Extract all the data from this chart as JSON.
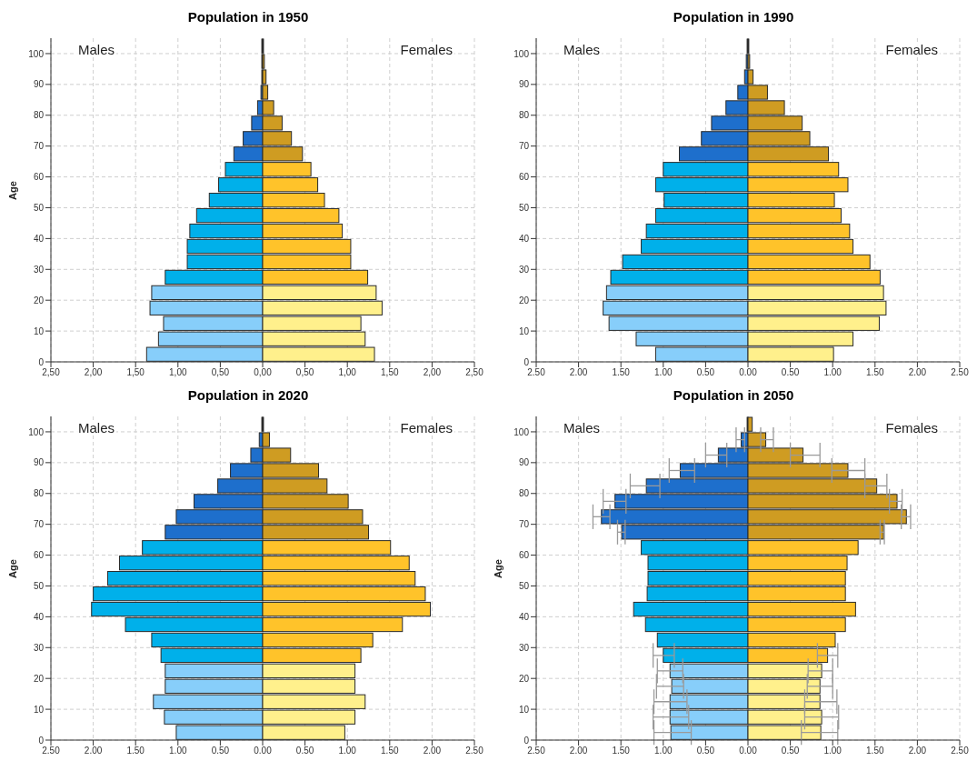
{
  "chart_data": [
    {
      "type": "bar",
      "orientation": "horizontal",
      "title": "Population in 1950",
      "ylabel": "Age",
      "grid": true,
      "stacked": true,
      "legend": false,
      "annotations": [
        "Males",
        "Females"
      ],
      "x": [
        2.5,
        7.5,
        12.5,
        17.5,
        22.5,
        27.5,
        32.5,
        37.5,
        42.5,
        47.5,
        52.5,
        57.5,
        62.5,
        67.5,
        72.5,
        77.5,
        82.5,
        87.5,
        92.5,
        97.5,
        102.5
      ],
      "ylim": [
        0,
        105
      ],
      "yticks": [
        0,
        10,
        20,
        30,
        40,
        50,
        60,
        70,
        80,
        90,
        100
      ],
      "xlim": [
        -2.5,
        2.5
      ],
      "xticks": [
        {
          "value": -2.5,
          "label": "2,50"
        },
        {
          "value": -2,
          "label": "2,00"
        },
        {
          "value": -1.5,
          "label": "1,50"
        },
        {
          "value": -1,
          "label": "1,00"
        },
        {
          "value": -0.5,
          "label": "0,50"
        },
        {
          "value": 0,
          "label": "0,00"
        },
        {
          "value": 0.5,
          "label": "0,50"
        },
        {
          "value": 1,
          "label": "1,00"
        },
        {
          "value": 1.5,
          "label": "1,50"
        },
        {
          "value": 2,
          "label": "2,00"
        },
        {
          "value": 2.5,
          "label": "2,50"
        }
      ],
      "series": [
        {
          "colors": [
            "#87cefa",
            "#87cefa",
            "#87cefa",
            "#87cefa",
            "#87cefa",
            "#00b0ea",
            "#00b0ea",
            "#00b0ea",
            "#00b0ea",
            "#00b0ea",
            "#00b0ea",
            "#00b0ea",
            "#00b0ea",
            "#1e6fcc",
            "#1e6fcc",
            "#1e6fcc",
            "#1e6fcc",
            "#1e6fcc",
            "#1e6fcc",
            "#1e6fcc",
            "#1e6fcc"
          ],
          "values": [
            -1.37,
            -1.23,
            -1.17,
            -1.33,
            -1.31,
            -1.15,
            -0.89,
            -0.89,
            -0.86,
            -0.78,
            -0.63,
            -0.52,
            -0.44,
            -0.34,
            -0.23,
            -0.13,
            -0.06,
            -0.02,
            -0.01,
            -0.01,
            -0.01
          ]
        },
        {
          "colors": [
            "#fff08c",
            "#fff08c",
            "#fff08c",
            "#fff08c",
            "#fff08c",
            "#ffc32a",
            "#ffc32a",
            "#ffc32a",
            "#ffc32a",
            "#ffc32a",
            "#ffc32a",
            "#ffc32a",
            "#ffc32a",
            "#cf9c22",
            "#cf9c22",
            "#cf9c22",
            "#cf9c22",
            "#cf9c22",
            "#cf9c22",
            "#cf9c22",
            "#cf9c22"
          ],
          "values": [
            1.32,
            1.21,
            1.16,
            1.41,
            1.34,
            1.24,
            1.04,
            1.04,
            0.94,
            0.9,
            0.73,
            0.65,
            0.57,
            0.47,
            0.34,
            0.23,
            0.13,
            0.06,
            0.04,
            0.02,
            0.01
          ]
        }
      ]
    },
    {
      "type": "bar",
      "orientation": "horizontal",
      "title": "Population in 1990",
      "grid": true,
      "stacked": true,
      "legend": false,
      "annotations": [
        "Males",
        "Females"
      ],
      "x": [
        2.5,
        7.5,
        12.5,
        17.5,
        22.5,
        27.5,
        32.5,
        37.5,
        42.5,
        47.5,
        52.5,
        57.5,
        62.5,
        67.5,
        72.5,
        77.5,
        82.5,
        87.5,
        92.5,
        97.5,
        102.5
      ],
      "ylim": [
        0,
        105
      ],
      "yticks": [
        0,
        10,
        20,
        30,
        40,
        50,
        60,
        70,
        80,
        90,
        100
      ],
      "xlim": [
        -2.5,
        2.5
      ],
      "xticks": [
        {
          "value": -2.5,
          "label": "2.50"
        },
        {
          "value": -2,
          "label": "2.00"
        },
        {
          "value": -1.5,
          "label": "1.50"
        },
        {
          "value": -1,
          "label": "1.00"
        },
        {
          "value": -0.5,
          "label": "0.50"
        },
        {
          "value": 0,
          "label": "0.00"
        },
        {
          "value": 0.5,
          "label": "0.50"
        },
        {
          "value": 1,
          "label": "1.00"
        },
        {
          "value": 1.5,
          "label": "1.50"
        },
        {
          "value": 2,
          "label": "2.00"
        },
        {
          "value": 2.5,
          "label": "2.50"
        }
      ],
      "series": [
        {
          "colors": [
            "#87cefa",
            "#87cefa",
            "#87cefa",
            "#87cefa",
            "#87cefa",
            "#00b0ea",
            "#00b0ea",
            "#00b0ea",
            "#00b0ea",
            "#00b0ea",
            "#00b0ea",
            "#00b0ea",
            "#00b0ea",
            "#1e6fcc",
            "#1e6fcc",
            "#1e6fcc",
            "#1e6fcc",
            "#1e6fcc",
            "#1e6fcc",
            "#1e6fcc",
            "#1e6fcc"
          ],
          "values": [
            -1.09,
            -1.32,
            -1.64,
            -1.71,
            -1.67,
            -1.62,
            -1.48,
            -1.26,
            -1.2,
            -1.09,
            -0.99,
            -1.09,
            -1.0,
            -0.81,
            -0.55,
            -0.43,
            -0.26,
            -0.12,
            -0.04,
            -0.02,
            -0.01
          ]
        },
        {
          "colors": [
            "#fff08c",
            "#fff08c",
            "#fff08c",
            "#fff08c",
            "#fff08c",
            "#ffc32a",
            "#ffc32a",
            "#ffc32a",
            "#ffc32a",
            "#ffc32a",
            "#ffc32a",
            "#ffc32a",
            "#ffc32a",
            "#cf9c22",
            "#cf9c22",
            "#cf9c22",
            "#cf9c22",
            "#cf9c22",
            "#cf9c22",
            "#cf9c22",
            "#cf9c22"
          ],
          "values": [
            1.01,
            1.24,
            1.55,
            1.63,
            1.6,
            1.56,
            1.44,
            1.24,
            1.2,
            1.1,
            1.02,
            1.18,
            1.07,
            0.95,
            0.73,
            0.64,
            0.43,
            0.23,
            0.06,
            0.02,
            0.01
          ]
        }
      ]
    },
    {
      "type": "bar",
      "orientation": "horizontal",
      "title": "Population in 2020",
      "ylabel": "Age",
      "grid": true,
      "stacked": true,
      "legend": false,
      "annotations": [
        "Males",
        "Females"
      ],
      "x": [
        2.5,
        7.5,
        12.5,
        17.5,
        22.5,
        27.5,
        32.5,
        37.5,
        42.5,
        47.5,
        52.5,
        57.5,
        62.5,
        67.5,
        72.5,
        77.5,
        82.5,
        87.5,
        92.5,
        97.5,
        102.5
      ],
      "ylim": [
        0,
        105
      ],
      "yticks": [
        0,
        10,
        20,
        30,
        40,
        50,
        60,
        70,
        80,
        90,
        100
      ],
      "xlim": [
        -2.5,
        2.5
      ],
      "xticks": [
        {
          "value": -2.5,
          "label": "2.50"
        },
        {
          "value": -2,
          "label": "2.00"
        },
        {
          "value": -1.5,
          "label": "1.50"
        },
        {
          "value": -1,
          "label": "1.00"
        },
        {
          "value": -0.5,
          "label": "0.50"
        },
        {
          "value": 0,
          "label": "0.00"
        },
        {
          "value": 0.5,
          "label": "0.50"
        },
        {
          "value": 1,
          "label": "1.00"
        },
        {
          "value": 1.5,
          "label": "1.50"
        },
        {
          "value": 2,
          "label": "2.00"
        },
        {
          "value": 2.5,
          "label": "2.50"
        }
      ],
      "series": [
        {
          "colors": [
            "#87cefa",
            "#87cefa",
            "#87cefa",
            "#87cefa",
            "#87cefa",
            "#00b0ea",
            "#00b0ea",
            "#00b0ea",
            "#00b0ea",
            "#00b0ea",
            "#00b0ea",
            "#00b0ea",
            "#00b0ea",
            "#1e6fcc",
            "#1e6fcc",
            "#1e6fcc",
            "#1e6fcc",
            "#1e6fcc",
            "#1e6fcc",
            "#1e6fcc",
            "#1e6fcc"
          ],
          "values": [
            -1.02,
            -1.16,
            -1.29,
            -1.15,
            -1.15,
            -1.2,
            -1.31,
            -1.62,
            -2.02,
            -2.0,
            -1.83,
            -1.69,
            -1.42,
            -1.15,
            -1.02,
            -0.81,
            -0.53,
            -0.38,
            -0.14,
            -0.04,
            -0.01
          ]
        },
        {
          "colors": [
            "#fff08c",
            "#fff08c",
            "#fff08c",
            "#fff08c",
            "#fff08c",
            "#ffc32a",
            "#ffc32a",
            "#ffc32a",
            "#ffc32a",
            "#ffc32a",
            "#ffc32a",
            "#ffc32a",
            "#ffc32a",
            "#cf9c22",
            "#cf9c22",
            "#cf9c22",
            "#cf9c22",
            "#cf9c22",
            "#cf9c22",
            "#cf9c22",
            "#cf9c22"
          ],
          "values": [
            0.97,
            1.09,
            1.21,
            1.09,
            1.09,
            1.16,
            1.3,
            1.65,
            1.98,
            1.92,
            1.8,
            1.73,
            1.51,
            1.25,
            1.18,
            1.01,
            0.76,
            0.66,
            0.33,
            0.08,
            0.01
          ]
        }
      ]
    },
    {
      "type": "bar",
      "orientation": "horizontal",
      "title": "Population in 2050",
      "ylabel": "Age",
      "grid": true,
      "stacked": true,
      "legend": false,
      "annotations": [
        "Males",
        "Females"
      ],
      "x": [
        2.5,
        7.5,
        12.5,
        17.5,
        22.5,
        27.5,
        32.5,
        37.5,
        42.5,
        47.5,
        52.5,
        57.5,
        62.5,
        67.5,
        72.5,
        77.5,
        82.5,
        87.5,
        92.5,
        97.5,
        102.5
      ],
      "ylim": [
        0,
        105
      ],
      "yticks": [
        0,
        10,
        20,
        30,
        40,
        50,
        60,
        70,
        80,
        90,
        100
      ],
      "xlim": [
        -2.5,
        2.5
      ],
      "xticks": [
        {
          "value": -2.5,
          "label": "2.50"
        },
        {
          "value": -2,
          "label": "2.00"
        },
        {
          "value": -1.5,
          "label": "1.50"
        },
        {
          "value": -1,
          "label": "1.00"
        },
        {
          "value": -0.5,
          "label": "0.50"
        },
        {
          "value": 0,
          "label": "0.00"
        },
        {
          "value": 0.5,
          "label": "0.50"
        },
        {
          "value": 1,
          "label": "1.00"
        },
        {
          "value": 1.5,
          "label": "1.50"
        },
        {
          "value": 2,
          "label": "2.00"
        },
        {
          "value": 2.5,
          "label": "2.50"
        }
      ],
      "series": [
        {
          "colors": [
            "#87cefa",
            "#87cefa",
            "#87cefa",
            "#87cefa",
            "#87cefa",
            "#00b0ea",
            "#00b0ea",
            "#00b0ea",
            "#00b0ea",
            "#00b0ea",
            "#00b0ea",
            "#00b0ea",
            "#00b0ea",
            "#1e6fcc",
            "#1e6fcc",
            "#1e6fcc",
            "#1e6fcc",
            "#1e6fcc",
            "#1e6fcc",
            "#1e6fcc",
            "#1e6fcc"
          ],
          "values": [
            -0.91,
            -0.92,
            -0.92,
            -0.9,
            -0.92,
            -1.0,
            -1.07,
            -1.21,
            -1.35,
            -1.19,
            -1.18,
            -1.18,
            -1.26,
            -1.49,
            -1.73,
            -1.57,
            -1.2,
            -0.8,
            -0.35,
            -0.08,
            -0.01
          ],
          "errors": [
            [
              -1.11,
              -0.67
            ],
            [
              -1.12,
              -0.7
            ],
            [
              -1.11,
              -0.72
            ],
            [
              -1.08,
              -0.76
            ],
            [
              -1.07,
              -0.77
            ],
            [
              -1.12,
              -0.87
            ],
            null,
            null,
            null,
            null,
            null,
            null,
            null,
            [
              -1.54,
              -1.45
            ],
            [
              -1.83,
              -1.63
            ],
            [
              -1.71,
              -1.44
            ],
            [
              -1.39,
              -1.04
            ],
            [
              -0.93,
              -0.63
            ],
            [
              -0.5,
              -0.25
            ],
            [
              -0.14,
              -0.04
            ],
            null
          ]
        },
        {
          "colors": [
            "#fff08c",
            "#fff08c",
            "#fff08c",
            "#fff08c",
            "#fff08c",
            "#ffc32a",
            "#ffc32a",
            "#ffc32a",
            "#ffc32a",
            "#ffc32a",
            "#ffc32a",
            "#ffc32a",
            "#ffc32a",
            "#cf9c22",
            "#cf9c22",
            "#cf9c22",
            "#cf9c22",
            "#cf9c22",
            "#cf9c22",
            "#cf9c22",
            "#cf9c22"
          ],
          "values": [
            0.86,
            0.87,
            0.85,
            0.85,
            0.87,
            0.94,
            1.03,
            1.15,
            1.27,
            1.15,
            1.15,
            1.17,
            1.3,
            1.6,
            1.87,
            1.76,
            1.52,
            1.18,
            0.65,
            0.21,
            0.05
          ],
          "errors": [
            [
              0.63,
              1.06
            ],
            [
              0.67,
              1.07
            ],
            [
              0.67,
              1.05
            ],
            [
              0.7,
              1.0
            ],
            [
              0.71,
              1.0
            ],
            [
              0.82,
              1.06
            ],
            null,
            null,
            null,
            null,
            null,
            null,
            null,
            [
              1.56,
              1.61
            ],
            [
              1.81,
              1.92
            ],
            [
              1.67,
              1.82
            ],
            [
              1.38,
              1.64
            ],
            [
              0.99,
              1.38
            ],
            [
              0.5,
              0.85
            ],
            [
              0.15,
              0.3
            ],
            null
          ]
        }
      ]
    }
  ]
}
